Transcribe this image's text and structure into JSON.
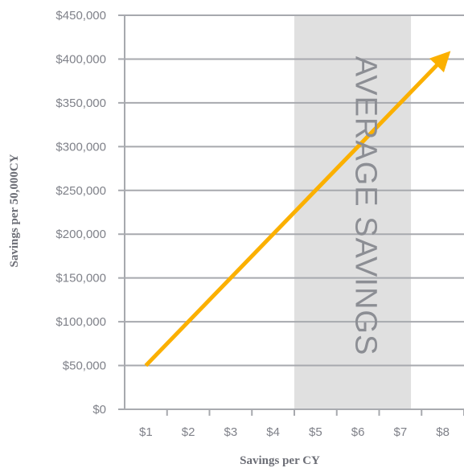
{
  "chart_data": {
    "type": "line",
    "xlabel": "Savings  per CY",
    "ylabel": "Savings per 50,000CY",
    "x_categories": [
      "$1",
      "$2",
      "$3",
      "$4",
      "$5",
      "$6",
      "$7",
      "$8"
    ],
    "y_ticks": [
      "$0",
      "$50,000",
      "$100,000",
      "$150,000",
      "$200,000",
      "$250,000",
      "$300,000",
      "$350,000",
      "$400,000",
      "$450,000"
    ],
    "ylim": [
      0,
      450000
    ],
    "xlim": [
      0.5,
      8.5
    ],
    "grid": "horizontal",
    "series": [
      {
        "color": "#fbb000",
        "points": [
          [
            1,
            50000
          ],
          [
            8,
            400000
          ]
        ],
        "arrow_end": true
      }
    ],
    "highlight_band": {
      "x_from": 4.5,
      "x_to": 7.25,
      "label": "AVERAGE SAVINGS",
      "color": "#e0e0e0"
    }
  }
}
